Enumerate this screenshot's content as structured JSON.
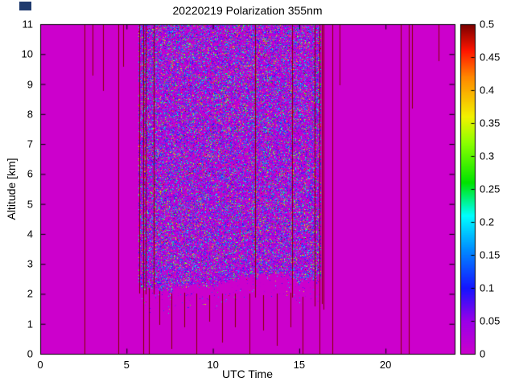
{
  "window": {
    "artifact_color": "#1f3a6e"
  },
  "chart_data": {
    "type": "heatmap",
    "title": "20220219 Polarization 355nm",
    "xlabel": "UTC Time",
    "ylabel": "Altitude [km]",
    "xlim": [
      0,
      24
    ],
    "ylim": [
      0,
      11
    ],
    "grid": false,
    "legend": null,
    "plot_bg_value": 0,
    "xticks": {
      "values": [
        0,
        5,
        10,
        15,
        20
      ],
      "labels": [
        "0",
        "5",
        "10",
        "15",
        "20"
      ]
    },
    "yticks": {
      "values": [
        0,
        1,
        2,
        3,
        4,
        5,
        6,
        7,
        8,
        9,
        10,
        11
      ],
      "labels": [
        "0",
        "1",
        "2",
        "3",
        "4",
        "5",
        "6",
        "7",
        "8",
        "9",
        "10",
        "11"
      ]
    },
    "colorbar": {
      "min": 0,
      "max": 0.5,
      "position": "right",
      "tick_values": [
        0,
        0.05,
        0.1,
        0.15,
        0.2,
        0.25,
        0.3,
        0.35,
        0.4,
        0.45,
        0.5
      ],
      "tick_labels": [
        "0",
        "0.05",
        "0.1",
        "0.15",
        "0.2",
        "0.25",
        "0.3",
        "0.35",
        "0.4",
        "0.45",
        "0.5"
      ],
      "stops": [
        [
          0.0,
          "#cc00cc"
        ],
        [
          0.05,
          "#9b00e8"
        ],
        [
          0.1,
          "#1414ff"
        ],
        [
          0.16,
          "#0090ff"
        ],
        [
          0.21,
          "#00ffff"
        ],
        [
          0.26,
          "#00e400"
        ],
        [
          0.32,
          "#8cff00"
        ],
        [
          0.36,
          "#f2f200"
        ],
        [
          0.42,
          "#ff8800"
        ],
        [
          0.46,
          "#ff1500"
        ],
        [
          0.5,
          "#7a0000"
        ]
      ]
    },
    "noise_region": {
      "x_range": [
        5.7,
        16.2
      ],
      "y_bottom_km_mean": 2.1,
      "y_top_km": 11,
      "description": "dense random depolarization speckle between ~06 and ~16 UTC above ~2 km; mostly values 0-0.15 (magenta/blue/cyan) with sparse green/yellow/red points; ragged lower boundary near 2 km; flat background value 0 (magenta) elsewhere",
      "p_zero": 0.4,
      "bands": [
        [
          0.7,
          0.0,
          0.06
        ],
        [
          0.85,
          0.06,
          0.16
        ],
        [
          0.93,
          0.16,
          0.24
        ],
        [
          0.975,
          0.24,
          0.38
        ],
        [
          1.0,
          0.38,
          0.5
        ]
      ],
      "below_edge_speckle_prob": 0.06,
      "below_edge_depth_km": 0.7
    },
    "maroon_color": "#860000",
    "maroon_lines": [
      [
        2.55,
        0,
        11
      ],
      [
        3.05,
        9.3,
        11
      ],
      [
        3.62,
        8.8,
        11
      ],
      [
        4.5,
        0,
        11
      ],
      [
        4.82,
        9.6,
        11
      ],
      [
        5.72,
        2.05,
        11
      ],
      [
        5.95,
        0,
        11
      ],
      [
        6.1,
        2.0,
        11
      ],
      [
        6.55,
        2.0,
        11
      ],
      [
        12.45,
        1.9,
        11
      ],
      [
        14.6,
        1.9,
        11
      ],
      [
        15.9,
        1.6,
        11
      ],
      [
        16.18,
        0,
        11
      ],
      [
        16.3,
        1.7,
        11
      ],
      [
        16.42,
        1.5,
        11
      ],
      [
        16.9,
        0,
        11
      ],
      [
        17.35,
        9.0,
        11
      ],
      [
        20.9,
        0,
        11
      ],
      [
        21.35,
        0,
        11
      ],
      [
        21.55,
        8.2,
        11
      ],
      [
        23.05,
        9.8,
        11
      ],
      [
        6.3,
        0,
        2.2
      ],
      [
        6.9,
        1.0,
        2.1
      ],
      [
        7.6,
        0.2,
        2.0
      ],
      [
        8.35,
        0.9,
        2.05
      ],
      [
        9.05,
        0,
        2.0
      ],
      [
        9.8,
        1.1,
        1.95
      ],
      [
        10.55,
        0.4,
        2.0
      ],
      [
        11.3,
        0.9,
        2.0
      ],
      [
        12.1,
        0,
        2.0
      ],
      [
        12.9,
        0.8,
        1.95
      ],
      [
        13.7,
        0.3,
        2.0
      ],
      [
        14.5,
        0.9,
        2.05
      ],
      [
        15.2,
        0,
        1.9
      ]
    ],
    "seed": 20220219
  }
}
